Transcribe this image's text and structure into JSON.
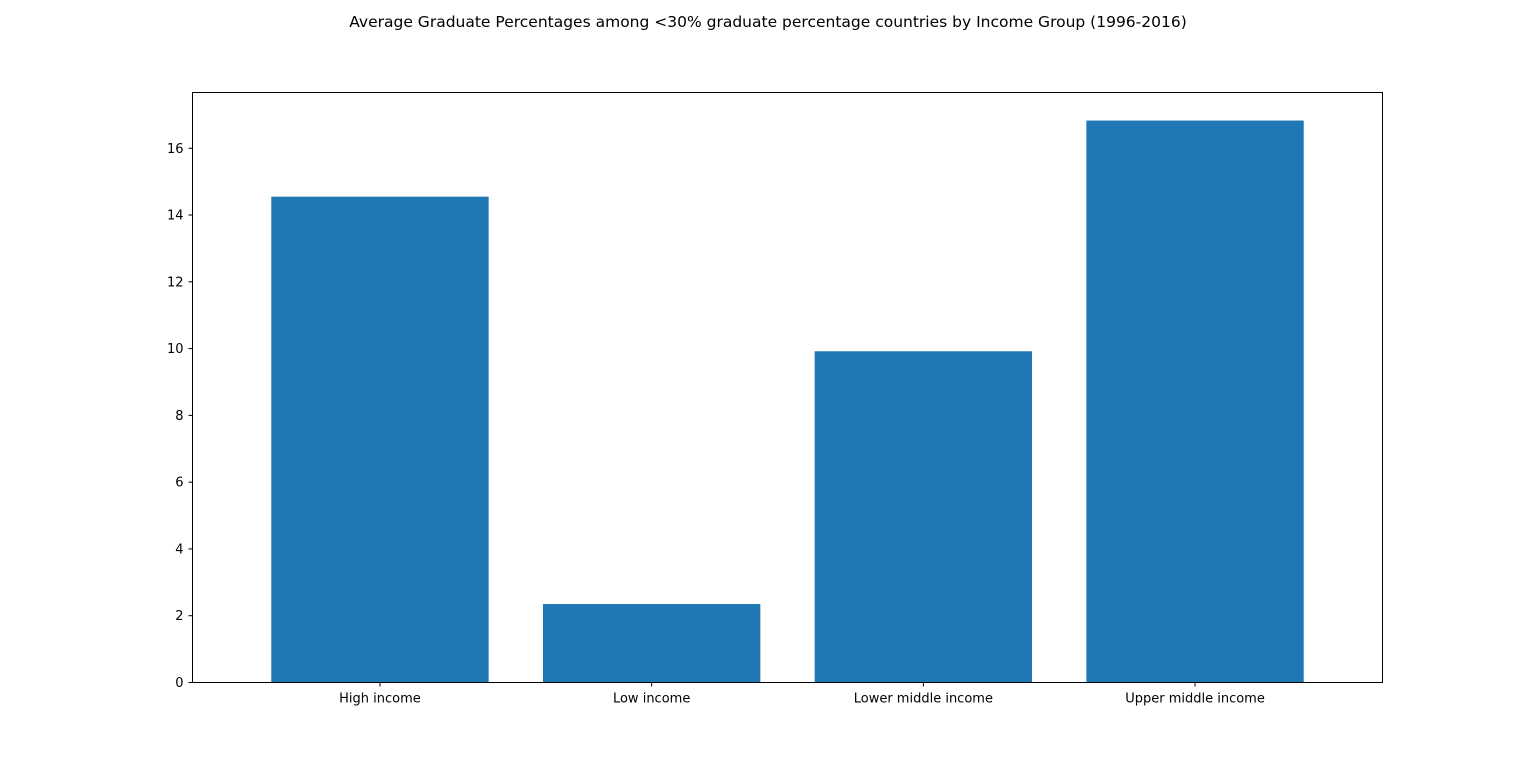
{
  "chart_data": {
    "type": "bar",
    "title": "Average Graduate Percentages among <30% graduate percentage countries by Income Group (1996-2016)",
    "xlabel": "",
    "ylabel": "",
    "categories": [
      "High income",
      "Low income",
      "Lower middle income",
      "Upper middle income"
    ],
    "values": [
      14.55,
      2.35,
      9.92,
      16.83
    ],
    "ylim": [
      0,
      17.67
    ],
    "yticks": [
      0,
      2,
      4,
      6,
      8,
      10,
      12,
      14,
      16
    ],
    "grid": false,
    "legend": "none",
    "bar_color": "#1f77b4"
  }
}
